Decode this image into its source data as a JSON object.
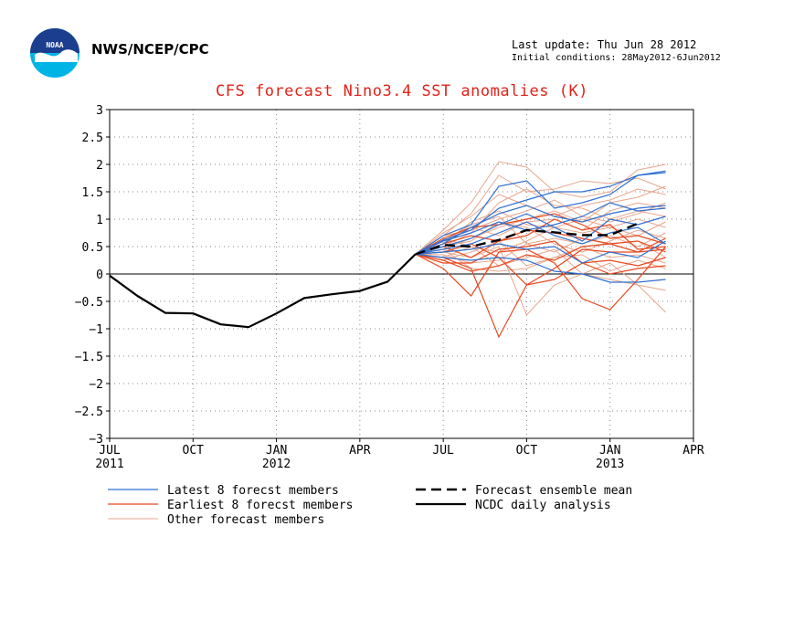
{
  "header": {
    "agency": "NWS/NCEP/CPC",
    "last_update": "Last update: Thu Jun 28 2012",
    "initial_conditions": "Initial conditions: 28May2012-6Jun2012",
    "logo_text": "NOAA"
  },
  "colors": {
    "latest": "#2e6fd1",
    "earliest": "#e8481e",
    "other": "#e8a68e",
    "analysis": "#000000",
    "title": "#e0231a"
  },
  "chart_data": {
    "type": "line",
    "title": "CFS forecast Nino3.4 SST anomalies (K)",
    "ylim": [
      -3,
      3
    ],
    "yticks": [
      "3",
      "2.5",
      "2",
      "1.5",
      "1",
      "0.5",
      "0",
      "−0.5",
      "−1",
      "−1.5",
      "−2",
      "−2.5",
      "−3"
    ],
    "xlim": [
      0,
      21
    ],
    "xticks": [
      {
        "x": 0,
        "month": "JUL",
        "year": "2011"
      },
      {
        "x": 3,
        "month": "OCT",
        "year": ""
      },
      {
        "x": 6,
        "month": "JAN",
        "year": "2012"
      },
      {
        "x": 9,
        "month": "APR",
        "year": ""
      },
      {
        "x": 12,
        "month": "JUL",
        "year": ""
      },
      {
        "x": 15,
        "month": "OCT",
        "year": ""
      },
      {
        "x": 18,
        "month": "JAN",
        "year": "2013"
      },
      {
        "x": 21,
        "month": "APR",
        "year": ""
      }
    ],
    "grid": true,
    "legend": [
      {
        "label": "Latest 8 forecst members",
        "style": "latest"
      },
      {
        "label": "Earliest 8 forecst members",
        "style": "earliest"
      },
      {
        "label": "Other forecast members",
        "style": "other"
      },
      {
        "label": "Forecast ensemble mean",
        "style": "mean"
      },
      {
        "label": "NCDC daily analysis",
        "style": "analysis"
      }
    ],
    "analysis": {
      "x": [
        0,
        1,
        2,
        3,
        4,
        5,
        6,
        7,
        8,
        9,
        10,
        11
      ],
      "y": [
        -0.03,
        -0.4,
        -0.71,
        -0.72,
        -0.92,
        -0.97,
        -0.72,
        -0.44,
        -0.37,
        -0.31,
        -0.14,
        0.36
      ]
    },
    "ensemble_mean": {
      "x": [
        11,
        12,
        13,
        14,
        15,
        16,
        17,
        18,
        19
      ],
      "y": [
        0.36,
        0.53,
        0.5,
        0.62,
        0.8,
        0.76,
        0.71,
        0.71,
        0.92
      ]
    },
    "members_x": [
      11,
      12,
      13,
      14,
      15,
      16,
      17,
      18,
      19,
      20
    ],
    "latest_members": [
      [
        0.36,
        0.62,
        0.8,
        1.2,
        1.35,
        1.5,
        1.5,
        1.6,
        1.8,
        1.88
      ],
      [
        0.36,
        0.7,
        0.9,
        1.6,
        1.7,
        1.2,
        1.3,
        1.45,
        1.8,
        1.85
      ],
      [
        0.36,
        0.55,
        0.85,
        1.1,
        1.25,
        1.05,
        0.95,
        1.1,
        1.2,
        1.25
      ],
      [
        0.36,
        0.5,
        0.65,
        0.9,
        1.1,
        0.85,
        0.6,
        1.0,
        0.9,
        1.05
      ],
      [
        0.36,
        0.45,
        0.55,
        0.75,
        0.95,
        0.7,
        0.55,
        0.75,
        0.85,
        0.55
      ],
      [
        0.36,
        0.4,
        0.45,
        0.55,
        0.45,
        0.5,
        0.2,
        0.4,
        0.3,
        0.6
      ],
      [
        0.36,
        0.3,
        0.25,
        0.3,
        0.25,
        0.05,
        0.0,
        -0.15,
        -0.15,
        -0.1
      ],
      [
        0.36,
        0.6,
        0.75,
        0.95,
        0.8,
        0.9,
        1.05,
        1.3,
        1.15,
        1.2
      ]
    ],
    "earliest_members": [
      [
        0.36,
        0.3,
        0.1,
        -1.15,
        -0.2,
        -0.1,
        0.2,
        0.0,
        0.1,
        0.15
      ],
      [
        0.36,
        0.1,
        -0.4,
        0.4,
        0.45,
        0.2,
        -0.45,
        -0.65,
        -0.1,
        0.5
      ],
      [
        0.36,
        0.5,
        0.3,
        0.6,
        0.7,
        1.0,
        0.8,
        0.9,
        0.45,
        0.5
      ],
      [
        0.36,
        0.65,
        0.85,
        0.9,
        1.0,
        1.1,
        0.9,
        0.65,
        0.7,
        0.55
      ],
      [
        0.36,
        0.2,
        0.2,
        0.45,
        0.5,
        0.6,
        0.2,
        0.25,
        0.15,
        0.3
      ],
      [
        0.36,
        0.4,
        0.55,
        0.3,
        -0.2,
        0.1,
        0.45,
        0.4,
        0.4,
        0.65
      ],
      [
        0.36,
        0.55,
        0.7,
        0.6,
        0.8,
        0.75,
        0.65,
        0.55,
        0.4,
        0.45
      ],
      [
        0.36,
        0.25,
        0.05,
        0.15,
        0.35,
        0.25,
        0.5,
        0.55,
        0.6,
        0.4
      ]
    ],
    "other_members": [
      [
        0.36,
        0.8,
        1.3,
        2.05,
        1.95,
        1.5,
        1.4,
        1.5,
        1.9,
        2.0
      ],
      [
        0.36,
        0.7,
        1.1,
        1.8,
        1.5,
        1.55,
        1.7,
        1.65,
        1.75,
        1.55
      ],
      [
        0.36,
        0.4,
        0.3,
        0.5,
        -0.75,
        -0.2,
        0.0,
        0.2,
        -0.2,
        -0.3
      ],
      [
        0.36,
        0.6,
        0.9,
        1.05,
        0.55,
        0.4,
        0.65,
        0.55,
        0.6,
        0.3
      ],
      [
        0.36,
        0.5,
        0.75,
        1.3,
        1.55,
        1.25,
        1.2,
        1.0,
        1.15,
        1.05
      ],
      [
        0.36,
        0.3,
        0.5,
        0.15,
        0.3,
        0.45,
        0.0,
        -0.1,
        -0.2,
        -0.7
      ],
      [
        0.36,
        0.45,
        0.65,
        0.85,
        1.0,
        1.15,
        0.95,
        1.3,
        1.4,
        1.6
      ],
      [
        0.36,
        0.55,
        0.95,
        1.15,
        0.9,
        0.85,
        0.75,
        0.85,
        1.0,
        0.85
      ],
      [
        0.36,
        0.65,
        0.5,
        0.4,
        0.6,
        0.85,
        1.0,
        0.85,
        0.7,
        0.95
      ],
      [
        0.36,
        0.25,
        0.4,
        0.6,
        0.15,
        0.3,
        0.35,
        0.05,
        0.25,
        0.1
      ],
      [
        0.36,
        0.75,
        1.05,
        1.45,
        1.25,
        1.05,
        1.25,
        1.35,
        1.55,
        1.45
      ],
      [
        0.36,
        0.35,
        0.2,
        0.25,
        0.55,
        0.65,
        0.55,
        0.7,
        0.5,
        0.75
      ],
      [
        0.36,
        0.6,
        0.85,
        0.7,
        0.95,
        1.0,
        0.8,
        1.15,
        1.3,
        1.2
      ],
      [
        0.36,
        0.5,
        0.6,
        0.95,
        0.85,
        0.55,
        0.4,
        0.6,
        0.8,
        0.65
      ],
      [
        0.36,
        0.45,
        0.1,
        0.05,
        0.1,
        0.3,
        0.5,
        0.3,
        0.35,
        0.2
      ],
      [
        0.36,
        0.7,
        0.8,
        1.0,
        1.15,
        1.35,
        1.05,
        0.95,
        1.1,
        1.3
      ]
    ]
  }
}
